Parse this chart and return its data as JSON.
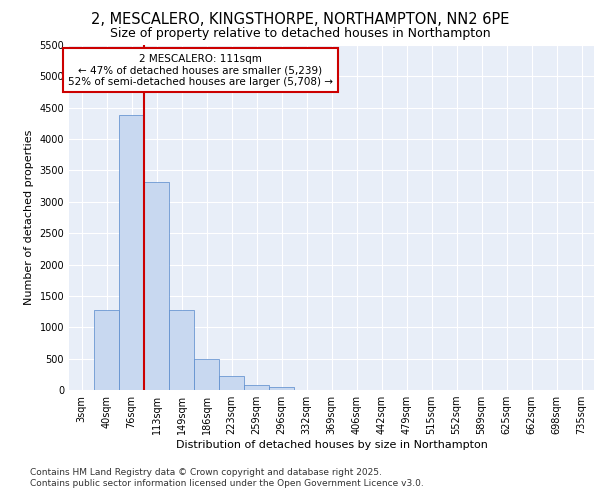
{
  "title_line1": "2, MESCALERO, KINGSTHORPE, NORTHAMPTON, NN2 6PE",
  "title_line2": "Size of property relative to detached houses in Northampton",
  "xlabel": "Distribution of detached houses by size in Northampton",
  "ylabel": "Number of detached properties",
  "categories": [
    "3sqm",
    "40sqm",
    "76sqm",
    "113sqm",
    "149sqm",
    "186sqm",
    "223sqm",
    "259sqm",
    "296sqm",
    "332sqm",
    "369sqm",
    "406sqm",
    "442sqm",
    "479sqm",
    "515sqm",
    "552sqm",
    "589sqm",
    "625sqm",
    "662sqm",
    "698sqm",
    "735sqm"
  ],
  "values": [
    0,
    1270,
    4380,
    3310,
    1280,
    500,
    220,
    80,
    55,
    0,
    0,
    0,
    0,
    0,
    0,
    0,
    0,
    0,
    0,
    0,
    0
  ],
  "bar_color": "#c8d8f0",
  "bar_edge_color": "#5588cc",
  "vline_color": "#cc0000",
  "annotation_text": "2 MESCALERO: 111sqm\n← 47% of detached houses are smaller (5,239)\n52% of semi-detached houses are larger (5,708) →",
  "annotation_box_color": "#ffffff",
  "annotation_box_edge_color": "#cc0000",
  "ylim": [
    0,
    5500
  ],
  "yticks": [
    0,
    500,
    1000,
    1500,
    2000,
    2500,
    3000,
    3500,
    4000,
    4500,
    5000,
    5500
  ],
  "bg_color": "#e8eef8",
  "grid_color": "#ffffff",
  "footer_line1": "Contains HM Land Registry data © Crown copyright and database right 2025.",
  "footer_line2": "Contains public sector information licensed under the Open Government Licence v3.0.",
  "title_fontsize": 10.5,
  "subtitle_fontsize": 9,
  "axis_label_fontsize": 8,
  "tick_fontsize": 7,
  "annotation_fontsize": 7.5,
  "footer_fontsize": 6.5
}
